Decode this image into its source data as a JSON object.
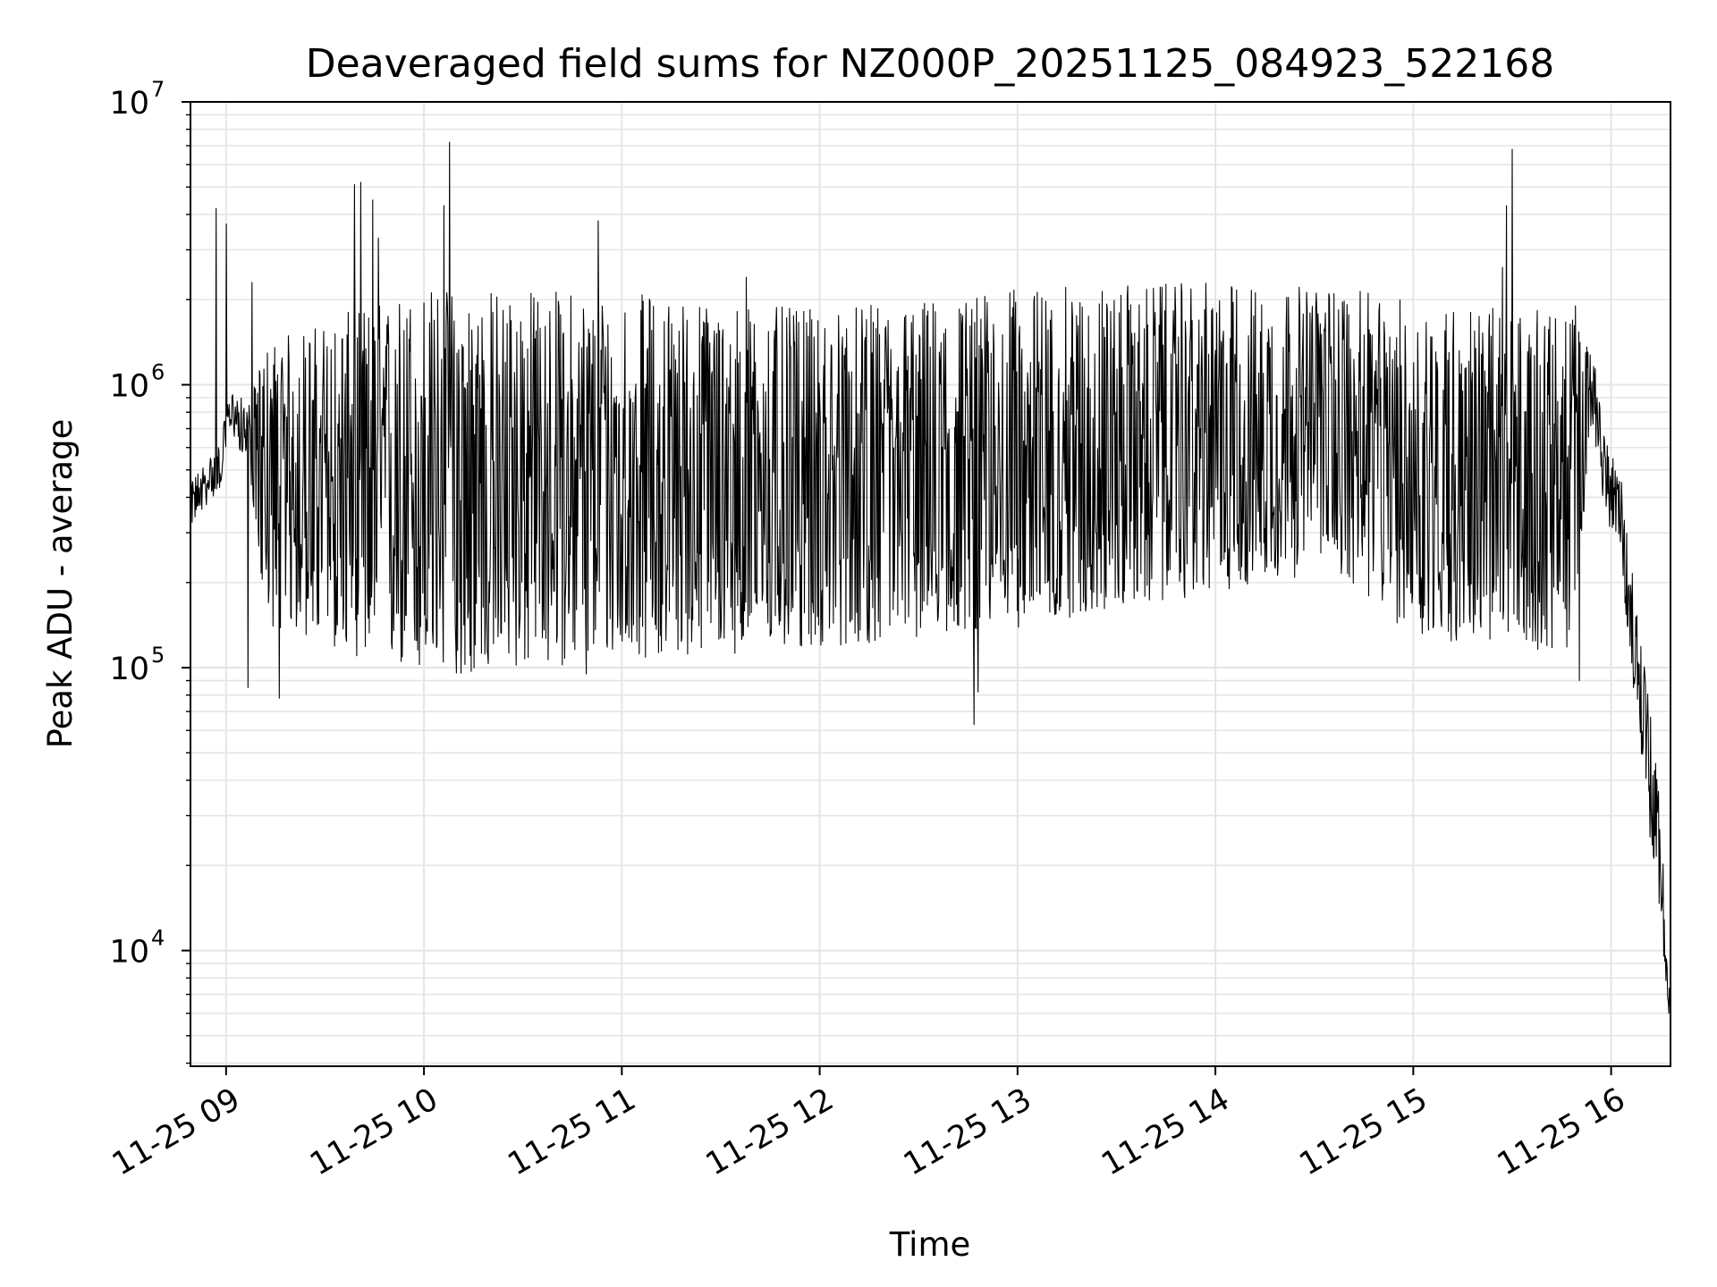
{
  "chart_data": {
    "type": "line",
    "title": "Deaveraged field sums for NZ000P_20251125_084923_522168",
    "xlabel": "Time",
    "ylabel": "Peak ADU - average",
    "yscale": "log",
    "ylim": [
      3900,
      10000000
    ],
    "xlim_hours": [
      8.82,
      16.3
    ],
    "grid": true,
    "line_color": "#000000",
    "grid_color": "#e5e5e5",
    "x_ticks": [
      {
        "value": 9,
        "label": "11-25 09"
      },
      {
        "value": 10,
        "label": "11-25 10"
      },
      {
        "value": 11,
        "label": "11-25 11"
      },
      {
        "value": 12,
        "label": "11-25 12"
      },
      {
        "value": 13,
        "label": "11-25 13"
      },
      {
        "value": 14,
        "label": "11-25 14"
      },
      {
        "value": 15,
        "label": "11-25 15"
      },
      {
        "value": 16,
        "label": "11-25 16"
      }
    ],
    "y_ticks": [
      {
        "value": 10000,
        "base": "10",
        "exp": "4"
      },
      {
        "value": 100000,
        "base": "10",
        "exp": "5"
      },
      {
        "value": 1000000,
        "base": "10",
        "exp": "6"
      },
      {
        "value": 10000000,
        "base": "10",
        "exp": "7"
      }
    ],
    "series": [
      {
        "name": "field sums",
        "generated": {
          "start_hour": 8.82,
          "end_hour": 16.3,
          "n_points": 2600,
          "segments": [
            {
              "t": 8.82,
              "center": 380000,
              "spread": 0.08
            },
            {
              "t": 8.97,
              "center": 520000,
              "spread": 0.08
            },
            {
              "t": 9.02,
              "center": 820000,
              "spread": 0.07
            },
            {
              "t": 9.12,
              "center": 650000,
              "spread": 0.12
            },
            {
              "t": 9.2,
              "center": 450000,
              "spread": 0.5
            },
            {
              "t": 10.0,
              "center": 450000,
              "spread": 0.7
            },
            {
              "t": 11.0,
              "center": 480000,
              "spread": 0.65
            },
            {
              "t": 12.0,
              "center": 460000,
              "spread": 0.6
            },
            {
              "t": 13.0,
              "center": 550000,
              "spread": 0.6
            },
            {
              "t": 14.0,
              "center": 650000,
              "spread": 0.55
            },
            {
              "t": 14.6,
              "center": 700000,
              "spread": 0.5
            },
            {
              "t": 15.0,
              "center": 500000,
              "spread": 0.6
            },
            {
              "t": 15.8,
              "center": 450000,
              "spread": 0.6
            },
            {
              "t": 15.9,
              "center": 1000000,
              "spread": 0.15
            },
            {
              "t": 15.97,
              "center": 500000,
              "spread": 0.15
            },
            {
              "t": 16.05,
              "center": 330000,
              "spread": 0.15
            },
            {
              "t": 16.15,
              "center": 80000,
              "spread": 0.25
            },
            {
              "t": 16.25,
              "center": 20000,
              "spread": 0.2
            },
            {
              "t": 16.3,
              "center": 5500,
              "spread": 0.05
            }
          ],
          "spikes": [
            {
              "t": 8.95,
              "v": 4200000
            },
            {
              "t": 9.0,
              "v": 3700000
            },
            {
              "t": 9.11,
              "v": 85000
            },
            {
              "t": 9.13,
              "v": 2300000
            },
            {
              "t": 9.27,
              "v": 78000
            },
            {
              "t": 9.65,
              "v": 5100000
            },
            {
              "t": 9.68,
              "v": 5200000
            },
            {
              "t": 9.74,
              "v": 4500000
            },
            {
              "t": 9.77,
              "v": 3300000
            },
            {
              "t": 10.1,
              "v": 4300000
            },
            {
              "t": 10.13,
              "v": 7200000
            },
            {
              "t": 10.24,
              "v": 97000
            },
            {
              "t": 10.82,
              "v": 95000
            },
            {
              "t": 10.88,
              "v": 3800000
            },
            {
              "t": 11.63,
              "v": 2400000
            },
            {
              "t": 12.78,
              "v": 63000
            },
            {
              "t": 12.8,
              "v": 82000
            },
            {
              "t": 14.6,
              "v": 2100000
            },
            {
              "t": 15.45,
              "v": 2600000
            },
            {
              "t": 15.47,
              "v": 4300000
            },
            {
              "t": 15.5,
              "v": 6800000
            },
            {
              "t": 15.82,
              "v": 1900000
            },
            {
              "t": 15.84,
              "v": 90000
            }
          ]
        }
      }
    ]
  }
}
